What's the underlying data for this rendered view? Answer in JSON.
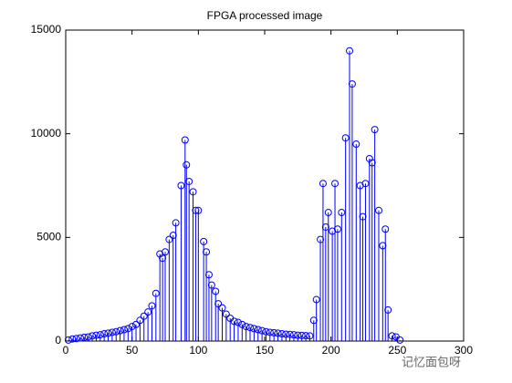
{
  "chart_data": {
    "type": "stem",
    "title": "FPGA processed image",
    "watermark": "记忆面包呀",
    "color": "#0000ff",
    "x": [
      2,
      5,
      8,
      11,
      14,
      17,
      20,
      23,
      26,
      29,
      32,
      35,
      38,
      41,
      44,
      47,
      50,
      53,
      56,
      59,
      62,
      65,
      68,
      71,
      73,
      75,
      78,
      81,
      83,
      87,
      90,
      91,
      93,
      96,
      98,
      100,
      104,
      106,
      108,
      110,
      113,
      115,
      118,
      121,
      124,
      127,
      130,
      133,
      136,
      139,
      142,
      145,
      148,
      151,
      154,
      157,
      160,
      163,
      166,
      169,
      172,
      175,
      178,
      181,
      184,
      187,
      189,
      192,
      194,
      196,
      198,
      201,
      203,
      205,
      208,
      211,
      214,
      216,
      219,
      222,
      224,
      226,
      229,
      231,
      233,
      236,
      239,
      241,
      243,
      246,
      249,
      252
    ],
    "values": [
      50,
      100,
      120,
      150,
      180,
      200,
      250,
      280,
      300,
      350,
      380,
      420,
      450,
      500,
      550,
      600,
      700,
      800,
      1000,
      1200,
      1400,
      1700,
      2300,
      4200,
      4000,
      4300,
      4900,
      5100,
      5700,
      7500,
      9700,
      8500,
      7700,
      7200,
      6300,
      6300,
      4800,
      4300,
      3200,
      2700,
      2400,
      1800,
      1600,
      1300,
      1100,
      950,
      900,
      800,
      700,
      650,
      600,
      550,
      500,
      450,
      420,
      400,
      380,
      350,
      330,
      320,
      300,
      280,
      270,
      260,
      250,
      1000,
      2000,
      4900,
      7600,
      5500,
      6200,
      5300,
      7600,
      5400,
      6200,
      9800,
      14000,
      12400,
      9500,
      7500,
      6000,
      7600,
      8800,
      8600,
      10200,
      6300,
      4600,
      5400,
      1500,
      250,
      200,
      50
    ],
    "xlim": [
      0,
      300
    ],
    "ylim": [
      0,
      15000
    ],
    "xticks": [
      0,
      50,
      100,
      150,
      200,
      250,
      300
    ],
    "yticks": [
      0,
      5000,
      10000,
      15000
    ]
  }
}
